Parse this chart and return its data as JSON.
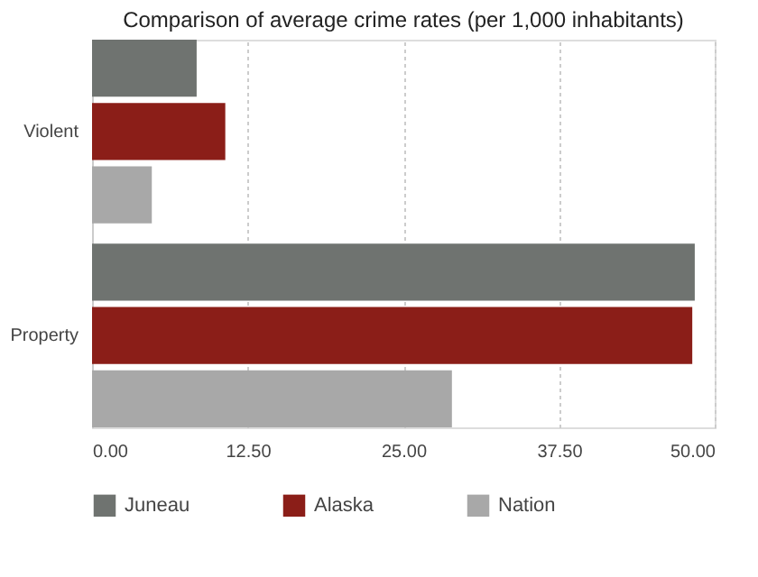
{
  "chart_data": {
    "type": "bar",
    "orientation": "horizontal",
    "title": "Comparison of average crime rates (per 1,000 inhabitants)",
    "categories": [
      "Violent",
      "Property"
    ],
    "series": [
      {
        "name": "Juneau",
        "color": "#6f7370",
        "values": [
          8.4,
          48.4
        ]
      },
      {
        "name": "Alaska",
        "color": "#8b1e18",
        "values": [
          10.7,
          48.2
        ]
      },
      {
        "name": "Nation",
        "color": "#a8a8a8",
        "values": [
          4.8,
          28.9
        ]
      }
    ],
    "xlim": [
      0,
      50
    ],
    "xticks": [
      {
        "value": 0,
        "label": "0.00"
      },
      {
        "value": 12.5,
        "label": "12.50"
      },
      {
        "value": 25,
        "label": "25.00"
      },
      {
        "value": 37.5,
        "label": "37.50"
      },
      {
        "value": 50,
        "label": "50.00"
      }
    ],
    "grid": "x",
    "legend": "bottom"
  }
}
